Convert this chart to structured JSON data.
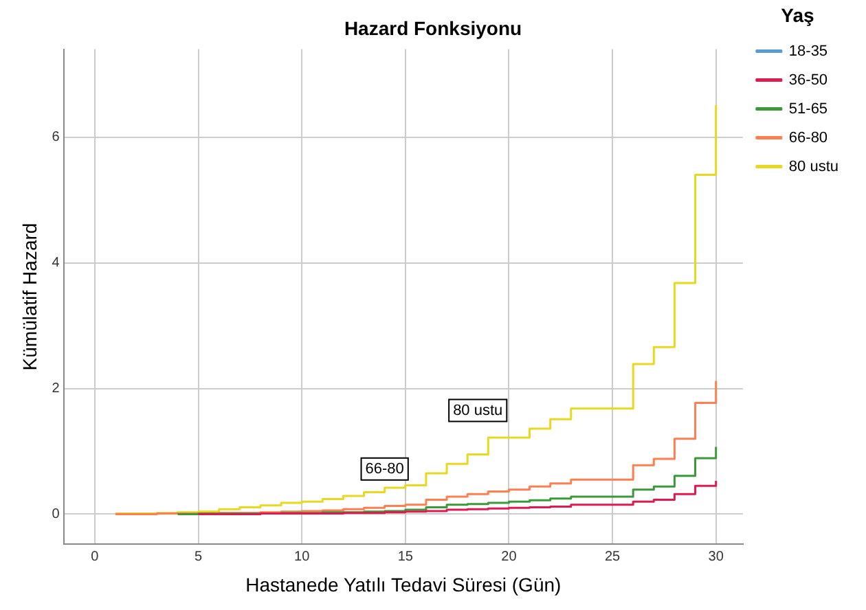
{
  "chart_data": {
    "type": "step",
    "title": "Hazard Fonksiyonu",
    "xlabel": "Hastanede Yatılı Tedavi Süresi (Gün)",
    "ylabel": "Kümülatif Hazard",
    "legend_title": "Yaş",
    "x": [
      1,
      2,
      3,
      4,
      5,
      6,
      7,
      8,
      9,
      10,
      11,
      12,
      13,
      14,
      15,
      16,
      17,
      18,
      19,
      20,
      21,
      22,
      23,
      24,
      25,
      26,
      27,
      28,
      29,
      30
    ],
    "series": [
      {
        "name": "18-35",
        "color": "#5b9bd5",
        "values": [
          null,
          null,
          null,
          null,
          null,
          null,
          null,
          null,
          null,
          null,
          null,
          null,
          null,
          null,
          null,
          null,
          null,
          null,
          null,
          null,
          null,
          null,
          null,
          null,
          null,
          null,
          null,
          null,
          null,
          null
        ]
      },
      {
        "name": "36-50",
        "color": "#e0194f",
        "values": [
          null,
          null,
          null,
          null,
          0,
          0,
          0,
          0.01,
          0.01,
          0.01,
          0.01,
          0.02,
          0.02,
          0.03,
          0.04,
          0.05,
          0.07,
          0.08,
          0.09,
          0.1,
          0.11,
          0.12,
          0.15,
          0.15,
          0.15,
          0.2,
          0.23,
          0.32,
          0.45,
          0.53
        ]
      },
      {
        "name": "51-65",
        "color": "#3a9a3a",
        "values": [
          null,
          null,
          null,
          0,
          0.01,
          0.01,
          0.01,
          0.01,
          0.02,
          0.02,
          0.03,
          0.03,
          0.04,
          0.05,
          0.07,
          0.11,
          0.15,
          0.16,
          0.18,
          0.2,
          0.22,
          0.25,
          0.28,
          0.28,
          0.28,
          0.39,
          0.44,
          0.61,
          0.89,
          1.07
        ]
      },
      {
        "name": "66-80",
        "color": "#ff7f50",
        "values": [
          0,
          0,
          0.01,
          0.01,
          0.01,
          0.02,
          0.02,
          0.03,
          0.04,
          0.05,
          0.06,
          0.08,
          0.1,
          0.13,
          0.15,
          0.23,
          0.28,
          0.32,
          0.36,
          0.39,
          0.44,
          0.49,
          0.55,
          0.55,
          0.55,
          0.78,
          0.88,
          1.2,
          1.77,
          2.12
        ]
      },
      {
        "name": "80 ustu",
        "color": "#e8d820",
        "values": [
          0.01,
          0.01,
          0.02,
          0.03,
          0.04,
          0.08,
          0.11,
          0.14,
          0.18,
          0.2,
          0.24,
          0.29,
          0.35,
          0.42,
          0.46,
          0.65,
          0.8,
          0.95,
          1.22,
          1.22,
          1.36,
          1.51,
          1.68,
          1.68,
          1.68,
          2.39,
          2.66,
          3.68,
          5.4,
          6.51
        ]
      }
    ],
    "xlim": [
      -1.5,
      31.3
    ],
    "xticks": [
      0,
      5,
      10,
      15,
      20,
      25,
      30
    ],
    "ylim": [
      -0.48,
      7.4
    ],
    "yticks": [
      0,
      2,
      4,
      6
    ],
    "grid": true,
    "legend": "right",
    "line_style": "solid",
    "marker": "none",
    "annotations": [
      {
        "text": "80 ustu",
        "x": 18.5,
        "y": 1.65
      },
      {
        "text": "66-80",
        "x": 14,
        "y": 0.72
      }
    ]
  }
}
